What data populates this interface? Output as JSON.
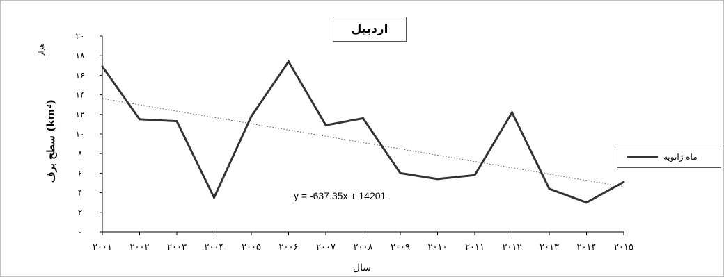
{
  "chart_data": {
    "type": "line",
    "title": "اردبيل",
    "xlabel": "سال",
    "ylabel": "سطح برف (km²)",
    "yunit": "هزار",
    "legend": "ماه ژانويه",
    "legend_position": "right",
    "trendline_equation": "y = -637.35x + 14201",
    "trendline_style": "dotted",
    "grid": false,
    "ylim": [
      0,
      20
    ],
    "yticks": [
      0,
      2,
      4,
      6,
      8,
      10,
      12,
      14,
      16,
      18,
      20
    ],
    "ytick_labels": [
      "٠",
      "٢",
      "۴",
      "۶",
      "٨",
      "١٠",
      "١٢",
      "١۴",
      "١۶",
      "١٨",
      "٢٠"
    ],
    "categories": [
      "٢٠٠١",
      "٢٠٠٢",
      "٢٠٠٣",
      "٢٠٠۴",
      "٢٠٠۵",
      "٢٠٠۶",
      "٢٠٠٧",
      "٢٠٠٨",
      "٢٠٠٩",
      "٢٠١٠",
      "٢٠١١",
      "٢٠١٢",
      "٢٠١٣",
      "٢٠١۴",
      "٢٠١۵"
    ],
    "x": [
      2001,
      2002,
      2003,
      2004,
      2005,
      2006,
      2007,
      2008,
      2009,
      2010,
      2011,
      2012,
      2013,
      2014,
      2015
    ],
    "series": [
      {
        "name": "ماه ژانويه",
        "values": [
          16.9,
          11.5,
          11.3,
          3.5,
          11.8,
          17.4,
          10.9,
          11.6,
          6.0,
          5.4,
          5.8,
          12.2,
          4.4,
          3.0,
          5.1
        ]
      }
    ],
    "colors": {
      "series": "#333333",
      "trend": "#555555",
      "axis": "#000000"
    }
  }
}
